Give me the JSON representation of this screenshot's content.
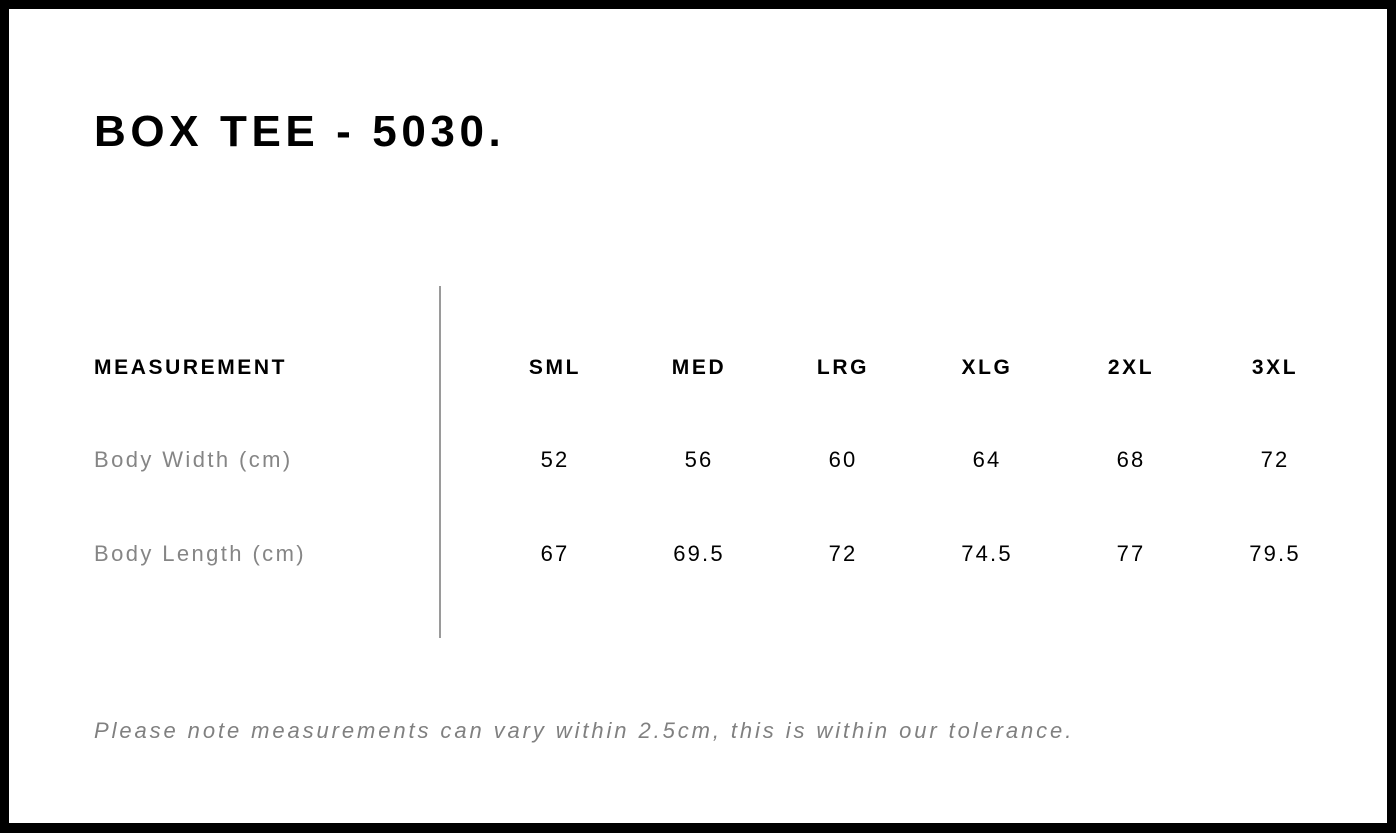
{
  "title": "BOX TEE - 5030.",
  "table": {
    "header_label": "MEASUREMENT",
    "sizes": [
      "SML",
      "MED",
      "LRG",
      "XLG",
      "2XL",
      "3XL"
    ],
    "rows": [
      {
        "label": "Body Width (cm)",
        "values": [
          "52",
          "56",
          "60",
          "64",
          "68",
          "72"
        ]
      },
      {
        "label": "Body Length (cm)",
        "values": [
          "67",
          "69.5",
          "72",
          "74.5",
          "77",
          "79.5"
        ]
      }
    ]
  },
  "note": "Please note measurements can vary within 2.5cm, this is within our tolerance."
}
